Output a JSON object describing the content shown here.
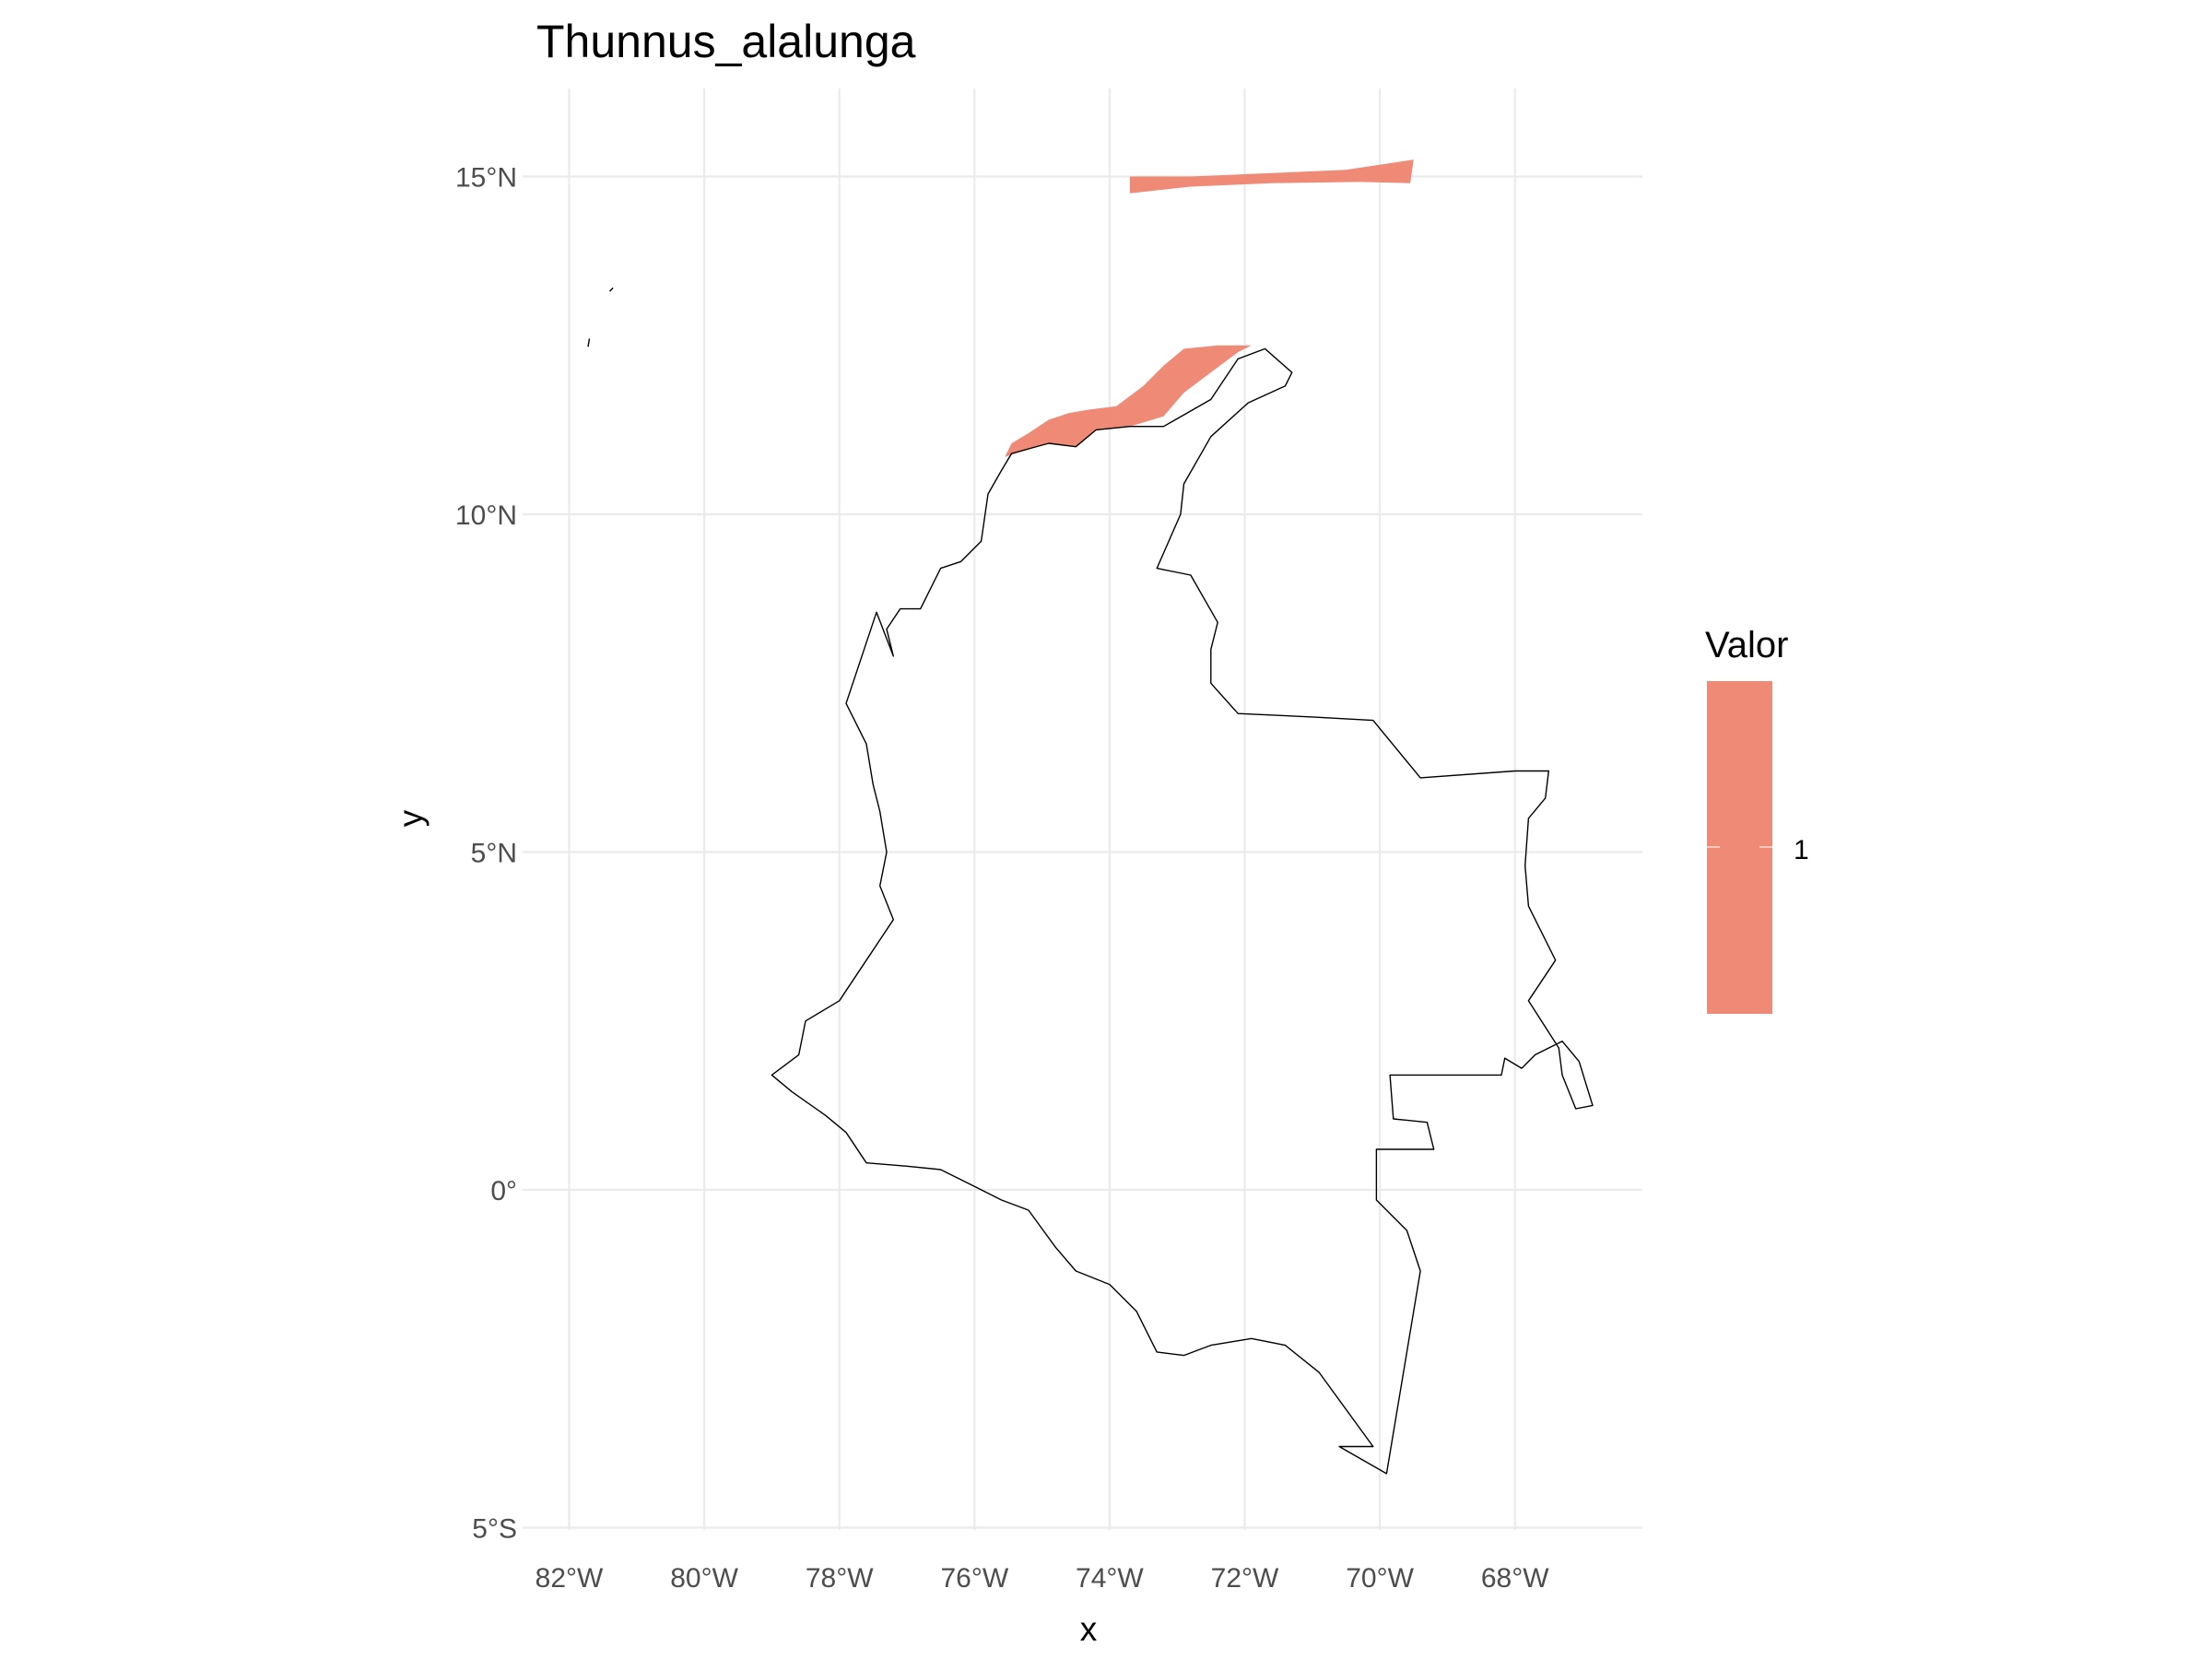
{
  "chart_data": {
    "type": "map",
    "title": "Thunnus_alalunga",
    "xlabel": "x",
    "ylabel": "y",
    "projection": "longitude-latitude",
    "xlim": [
      -82.3,
      -66.3
    ],
    "ylim": [
      -5.0,
      16.0
    ],
    "x_ticks": [
      {
        "value": -82,
        "label": "82°W"
      },
      {
        "value": -80,
        "label": "80°W"
      },
      {
        "value": -78,
        "label": "78°W"
      },
      {
        "value": -76,
        "label": "76°W"
      },
      {
        "value": -74,
        "label": "74°W"
      },
      {
        "value": -72,
        "label": "72°W"
      },
      {
        "value": -70,
        "label": "70°W"
      },
      {
        "value": -68,
        "label": "68°W"
      }
    ],
    "y_ticks": [
      {
        "value": 15,
        "label": "15°N"
      },
      {
        "value": 10,
        "label": "10°N"
      },
      {
        "value": 5,
        "label": "5°N"
      },
      {
        "value": 0,
        "label": "0°"
      },
      {
        "value": -5,
        "label": "5°S"
      }
    ],
    "grid": true,
    "legend": {
      "title": "Valor",
      "position": "right",
      "entries": [
        {
          "label": "1",
          "value": 1,
          "color": "#ee8a76"
        }
      ]
    },
    "fill_color": "#ee8a76",
    "outline_color": "#000000",
    "layers": [
      {
        "kind": "boundary",
        "name": "country-outline",
        "lonlat": [
          [
            -75.45,
            10.9
          ],
          [
            -75.6,
            10.65
          ],
          [
            -75.8,
            10.3
          ],
          [
            -75.9,
            9.6
          ],
          [
            -76.2,
            9.3
          ],
          [
            -76.5,
            9.2
          ],
          [
            -76.8,
            8.6
          ],
          [
            -77.1,
            8.6
          ],
          [
            -77.3,
            8.3
          ],
          [
            -77.2,
            7.9
          ],
          [
            -77.45,
            8.55
          ],
          [
            -77.9,
            7.2
          ],
          [
            -77.6,
            6.6
          ],
          [
            -77.5,
            6.0
          ],
          [
            -77.4,
            5.6
          ],
          [
            -77.3,
            5.0
          ],
          [
            -77.4,
            4.5
          ],
          [
            -77.2,
            4.0
          ],
          [
            -77.6,
            3.4
          ],
          [
            -78.0,
            2.8
          ],
          [
            -78.5,
            2.5
          ],
          [
            -78.6,
            2.0
          ],
          [
            -79.0,
            1.7
          ],
          [
            -78.7,
            1.45
          ],
          [
            -78.2,
            1.1
          ],
          [
            -77.9,
            0.85
          ],
          [
            -77.6,
            0.4
          ],
          [
            -77.0,
            0.35
          ],
          [
            -76.5,
            0.3
          ],
          [
            -76.0,
            0.05
          ],
          [
            -75.6,
            -0.15
          ],
          [
            -75.2,
            -0.3
          ],
          [
            -74.8,
            -0.85
          ],
          [
            -74.5,
            -1.2
          ],
          [
            -74.0,
            -1.4
          ],
          [
            -73.6,
            -1.8
          ],
          [
            -73.3,
            -2.4
          ],
          [
            -72.9,
            -2.45
          ],
          [
            -72.5,
            -2.3
          ],
          [
            -71.9,
            -2.2
          ],
          [
            -71.4,
            -2.3
          ],
          [
            -70.9,
            -2.7
          ],
          [
            -70.1,
            -3.8
          ],
          [
            -70.6,
            -3.8
          ],
          [
            -69.9,
            -4.2
          ],
          [
            -69.4,
            -1.2
          ],
          [
            -69.6,
            -0.6
          ],
          [
            -70.05,
            -0.15
          ],
          [
            -70.05,
            0.6
          ],
          [
            -69.2,
            0.6
          ],
          [
            -69.3,
            1.0
          ],
          [
            -69.8,
            1.05
          ],
          [
            -69.85,
            1.7
          ],
          [
            -68.2,
            1.7
          ],
          [
            -68.15,
            1.95
          ],
          [
            -67.9,
            1.8
          ],
          [
            -67.7,
            2.0
          ],
          [
            -67.3,
            2.2
          ],
          [
            -67.05,
            1.9
          ],
          [
            -66.85,
            1.25
          ],
          [
            -67.1,
            1.2
          ],
          [
            -67.3,
            1.7
          ],
          [
            -67.35,
            2.1
          ],
          [
            -67.8,
            2.8
          ],
          [
            -67.4,
            3.4
          ],
          [
            -67.8,
            4.2
          ],
          [
            -67.85,
            4.8
          ],
          [
            -67.8,
            5.5
          ],
          [
            -67.55,
            5.8
          ],
          [
            -67.5,
            6.2
          ],
          [
            -68.0,
            6.2
          ],
          [
            -69.4,
            6.1
          ],
          [
            -70.1,
            6.95
          ],
          [
            -71.0,
            7.0
          ],
          [
            -72.1,
            7.05
          ],
          [
            -72.5,
            7.5
          ],
          [
            -72.5,
            8.0
          ],
          [
            -72.4,
            8.4
          ],
          [
            -72.8,
            9.1
          ],
          [
            -73.3,
            9.2
          ],
          [
            -72.95,
            10.0
          ],
          [
            -72.9,
            10.45
          ],
          [
            -72.5,
            11.15
          ],
          [
            -71.95,
            11.65
          ],
          [
            -71.4,
            11.9
          ],
          [
            -71.3,
            12.1
          ],
          [
            -71.7,
            12.45
          ],
          [
            -72.1,
            12.3
          ],
          [
            -72.5,
            11.7
          ],
          [
            -73.2,
            11.3
          ],
          [
            -73.7,
            11.3
          ],
          [
            -74.2,
            11.25
          ],
          [
            -74.5,
            11.0
          ],
          [
            -74.9,
            11.05
          ],
          [
            -75.45,
            10.9
          ]
        ]
      },
      {
        "kind": "boundary",
        "name": "island-outline-1",
        "lonlat": [
          [
            -81.7,
            12.6
          ],
          [
            -81.72,
            12.48
          ]
        ]
      },
      {
        "kind": "boundary",
        "name": "island-outline-2",
        "lonlat": [
          [
            -81.35,
            13.35
          ],
          [
            -81.4,
            13.3
          ]
        ]
      },
      {
        "kind": "occurrence",
        "name": "caribbean-coast-range",
        "value": 1,
        "lonlat": [
          [
            -75.55,
            10.85
          ],
          [
            -75.45,
            11.05
          ],
          [
            -75.2,
            11.2
          ],
          [
            -74.9,
            11.4
          ],
          [
            -74.6,
            11.5
          ],
          [
            -74.3,
            11.55
          ],
          [
            -73.9,
            11.6
          ],
          [
            -73.5,
            11.9
          ],
          [
            -73.2,
            12.2
          ],
          [
            -72.9,
            12.45
          ],
          [
            -72.4,
            12.5
          ],
          [
            -71.9,
            12.5
          ],
          [
            -72.1,
            12.4
          ],
          [
            -72.5,
            12.1
          ],
          [
            -72.9,
            11.8
          ],
          [
            -73.2,
            11.45
          ],
          [
            -73.7,
            11.3
          ],
          [
            -74.2,
            11.25
          ],
          [
            -74.5,
            11.0
          ],
          [
            -74.9,
            11.05
          ],
          [
            -75.55,
            10.85
          ]
        ]
      },
      {
        "kind": "occurrence",
        "name": "offshore-band-range",
        "value": 1,
        "lonlat": [
          [
            -73.7,
            14.75
          ],
          [
            -73.7,
            15.0
          ],
          [
            -72.8,
            15.0
          ],
          [
            -71.6,
            15.05
          ],
          [
            -70.5,
            15.1
          ],
          [
            -69.5,
            15.25
          ],
          [
            -69.55,
            14.9
          ],
          [
            -70.3,
            14.92
          ],
          [
            -71.6,
            14.9
          ],
          [
            -72.8,
            14.85
          ],
          [
            -73.7,
            14.75
          ]
        ]
      }
    ]
  }
}
